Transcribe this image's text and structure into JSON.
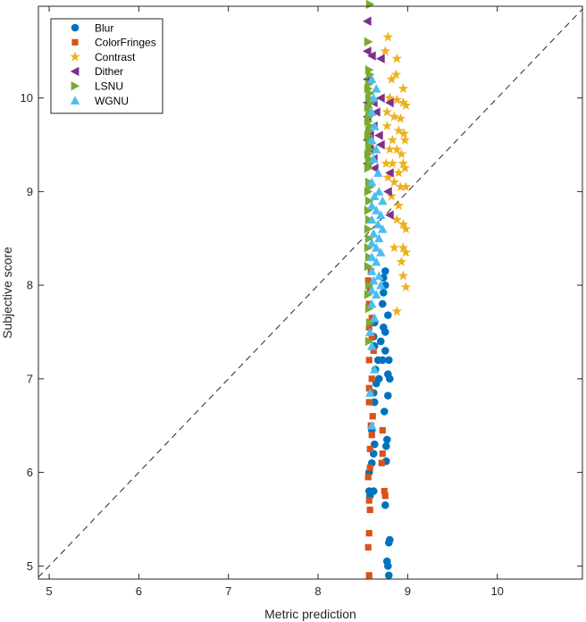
{
  "chart_data": {
    "type": "scatter",
    "xlabel": "Metric prediction",
    "ylabel": "Subjective score",
    "xlim": [
      4.88,
      10.95
    ],
    "ylim": [
      4.86,
      10.98
    ],
    "xticks": [
      5,
      6,
      7,
      8,
      9,
      10
    ],
    "yticks": [
      5,
      6,
      7,
      8,
      9,
      10
    ],
    "grid": false,
    "legend_position": "top-left",
    "reference_line": {
      "style": "dashed",
      "from": [
        4.88,
        4.88
      ],
      "to": [
        10.95,
        10.95
      ]
    },
    "series": [
      {
        "name": "Blur",
        "marker": "circle",
        "color": "#0072BD",
        "points": [
          [
            8.79,
            4.9
          ],
          [
            8.78,
            5.0
          ],
          [
            8.77,
            5.05
          ],
          [
            8.79,
            5.25
          ],
          [
            8.8,
            5.28
          ],
          [
            8.75,
            5.65
          ],
          [
            8.58,
            5.75
          ],
          [
            8.57,
            5.8
          ],
          [
            8.62,
            5.8
          ],
          [
            8.57,
            6.0
          ],
          [
            8.6,
            6.1
          ],
          [
            8.62,
            6.2
          ],
          [
            8.76,
            6.12
          ],
          [
            8.76,
            6.28
          ],
          [
            8.77,
            6.35
          ],
          [
            8.63,
            6.3
          ],
          [
            8.6,
            6.45
          ],
          [
            8.74,
            6.65
          ],
          [
            8.63,
            6.75
          ],
          [
            8.78,
            6.82
          ],
          [
            8.62,
            6.85
          ],
          [
            8.65,
            6.95
          ],
          [
            8.68,
            7.0
          ],
          [
            8.8,
            7.0
          ],
          [
            8.78,
            7.05
          ],
          [
            8.64,
            7.1
          ],
          [
            8.67,
            7.2
          ],
          [
            8.72,
            7.2
          ],
          [
            8.79,
            7.2
          ],
          [
            8.75,
            7.3
          ],
          [
            8.63,
            7.35
          ],
          [
            8.7,
            7.4
          ],
          [
            8.62,
            7.45
          ],
          [
            8.75,
            7.5
          ],
          [
            8.73,
            7.55
          ],
          [
            8.78,
            7.68
          ],
          [
            8.63,
            7.6
          ],
          [
            8.72,
            7.8
          ],
          [
            8.73,
            7.92
          ],
          [
            8.75,
            8.0
          ],
          [
            8.73,
            8.08
          ],
          [
            8.75,
            8.15
          ]
        ]
      },
      {
        "name": "ColorFringes",
        "marker": "square",
        "color": "#D95319",
        "points": [
          [
            8.57,
            4.9
          ],
          [
            8.56,
            5.2
          ],
          [
            8.57,
            5.35
          ],
          [
            8.58,
            5.6
          ],
          [
            8.57,
            5.7
          ],
          [
            8.75,
            5.75
          ],
          [
            8.74,
            5.8
          ],
          [
            8.56,
            5.95
          ],
          [
            8.58,
            6.05
          ],
          [
            8.58,
            6.25
          ],
          [
            8.71,
            6.1
          ],
          [
            8.72,
            6.2
          ],
          [
            8.6,
            6.4
          ],
          [
            8.59,
            6.5
          ],
          [
            8.61,
            6.6
          ],
          [
            8.57,
            6.75
          ],
          [
            8.59,
            6.85
          ],
          [
            8.72,
            6.45
          ],
          [
            8.57,
            6.9
          ],
          [
            8.6,
            7.0
          ],
          [
            8.57,
            7.2
          ],
          [
            8.62,
            7.3
          ],
          [
            8.6,
            7.45
          ],
          [
            8.57,
            7.55
          ],
          [
            8.6,
            7.65
          ],
          [
            8.57,
            7.8
          ],
          [
            8.58,
            7.95
          ],
          [
            8.56,
            8.05
          ],
          [
            8.59,
            8.15
          ]
        ]
      },
      {
        "name": "Contrast",
        "marker": "star",
        "color": "#EDB120",
        "points": [
          [
            8.78,
            10.65
          ],
          [
            8.88,
            10.42
          ],
          [
            8.75,
            10.5
          ],
          [
            8.82,
            10.2
          ],
          [
            8.87,
            10.25
          ],
          [
            8.95,
            10.1
          ],
          [
            8.8,
            10.0
          ],
          [
            8.88,
            9.98
          ],
          [
            8.95,
            9.95
          ],
          [
            8.98,
            9.92
          ],
          [
            8.77,
            9.85
          ],
          [
            8.85,
            9.8
          ],
          [
            8.92,
            9.78
          ],
          [
            8.77,
            9.7
          ],
          [
            8.9,
            9.65
          ],
          [
            8.96,
            9.62
          ],
          [
            8.83,
            9.55
          ],
          [
            8.97,
            9.55
          ],
          [
            8.8,
            9.45
          ],
          [
            8.88,
            9.45
          ],
          [
            8.93,
            9.4
          ],
          [
            8.76,
            9.3
          ],
          [
            8.83,
            9.3
          ],
          [
            8.95,
            9.3
          ],
          [
            8.9,
            9.2
          ],
          [
            8.97,
            9.25
          ],
          [
            8.78,
            9.15
          ],
          [
            8.85,
            9.1
          ],
          [
            8.92,
            9.05
          ],
          [
            8.98,
            9.05
          ],
          [
            8.82,
            8.95
          ],
          [
            8.9,
            8.85
          ],
          [
            8.88,
            8.7
          ],
          [
            8.95,
            8.65
          ],
          [
            8.98,
            8.6
          ],
          [
            8.85,
            8.4
          ],
          [
            8.95,
            8.4
          ],
          [
            8.98,
            8.35
          ],
          [
            8.93,
            8.25
          ],
          [
            8.95,
            8.1
          ],
          [
            8.98,
            7.98
          ],
          [
            8.88,
            7.72
          ]
        ]
      },
      {
        "name": "Dither",
        "marker": "triangle-left",
        "color": "#7E2F8E",
        "points": [
          [
            8.55,
            10.82
          ],
          [
            8.55,
            10.5
          ],
          [
            8.6,
            10.45
          ],
          [
            8.7,
            10.42
          ],
          [
            8.55,
            10.2
          ],
          [
            8.7,
            10.0
          ],
          [
            8.55,
            9.95
          ],
          [
            8.62,
            9.95
          ],
          [
            8.8,
            9.95
          ],
          [
            8.65,
            9.85
          ],
          [
            8.55,
            9.8
          ],
          [
            8.62,
            9.7
          ],
          [
            8.58,
            9.6
          ],
          [
            8.68,
            9.6
          ],
          [
            8.55,
            9.55
          ],
          [
            8.7,
            9.5
          ],
          [
            8.58,
            9.45
          ],
          [
            8.62,
            9.35
          ],
          [
            8.55,
            9.3
          ],
          [
            8.63,
            9.25
          ],
          [
            8.8,
            9.2
          ],
          [
            8.78,
            9.0
          ],
          [
            8.8,
            8.75
          ]
        ]
      },
      {
        "name": "LSNU",
        "marker": "triangle-right",
        "color": "#77AC30",
        "points": [
          [
            8.58,
            11.0
          ],
          [
            8.56,
            10.6
          ],
          [
            8.57,
            10.3
          ],
          [
            8.58,
            10.25
          ],
          [
            8.57,
            10.15
          ],
          [
            8.56,
            10.1
          ],
          [
            8.58,
            10.05
          ],
          [
            8.57,
            10.0
          ],
          [
            8.59,
            9.95
          ],
          [
            8.56,
            9.9
          ],
          [
            8.58,
            9.85
          ],
          [
            8.57,
            9.8
          ],
          [
            8.56,
            9.75
          ],
          [
            8.58,
            9.7
          ],
          [
            8.57,
            9.65
          ],
          [
            8.56,
            9.6
          ],
          [
            8.58,
            9.55
          ],
          [
            8.57,
            9.5
          ],
          [
            8.58,
            9.45
          ],
          [
            8.56,
            9.4
          ],
          [
            8.57,
            9.35
          ],
          [
            8.58,
            9.3
          ],
          [
            8.56,
            9.25
          ],
          [
            8.57,
            9.1
          ],
          [
            8.58,
            9.05
          ],
          [
            8.56,
            9.0
          ],
          [
            8.57,
            8.9
          ],
          [
            8.56,
            8.8
          ],
          [
            8.57,
            8.7
          ],
          [
            8.56,
            8.6
          ],
          [
            8.57,
            8.5
          ],
          [
            8.56,
            8.4
          ],
          [
            8.57,
            8.3
          ],
          [
            8.56,
            8.2
          ],
          [
            8.57,
            8.0
          ],
          [
            8.56,
            7.9
          ],
          [
            8.57,
            7.75
          ],
          [
            8.58,
            7.6
          ],
          [
            8.57,
            7.4
          ]
        ]
      },
      {
        "name": "WGNU",
        "marker": "triangle-up",
        "color": "#4DBEEE",
        "points": [
          [
            8.6,
            10.2
          ],
          [
            8.65,
            10.1
          ],
          [
            8.62,
            10.0
          ],
          [
            8.6,
            9.85
          ],
          [
            8.63,
            9.7
          ],
          [
            8.6,
            9.55
          ],
          [
            8.65,
            9.45
          ],
          [
            8.62,
            9.35
          ],
          [
            8.67,
            9.2
          ],
          [
            8.6,
            9.1
          ],
          [
            8.68,
            9.0
          ],
          [
            8.63,
            8.95
          ],
          [
            8.72,
            8.9
          ],
          [
            8.6,
            8.85
          ],
          [
            8.65,
            8.8
          ],
          [
            8.7,
            8.75
          ],
          [
            8.6,
            8.7
          ],
          [
            8.67,
            8.65
          ],
          [
            8.72,
            8.6
          ],
          [
            8.62,
            8.55
          ],
          [
            8.68,
            8.5
          ],
          [
            8.6,
            8.45
          ],
          [
            8.65,
            8.4
          ],
          [
            8.7,
            8.35
          ],
          [
            8.6,
            8.3
          ],
          [
            8.65,
            8.25
          ],
          [
            8.6,
            8.15
          ],
          [
            8.68,
            8.1
          ],
          [
            8.62,
            8.05
          ],
          [
            8.7,
            8.0
          ],
          [
            8.6,
            7.95
          ],
          [
            8.65,
            7.9
          ],
          [
            8.6,
            7.8
          ],
          [
            8.63,
            7.65
          ],
          [
            8.58,
            7.5
          ],
          [
            8.6,
            7.35
          ],
          [
            8.63,
            7.1
          ],
          [
            8.58,
            6.85
          ],
          [
            8.6,
            6.5
          ]
        ]
      }
    ]
  }
}
